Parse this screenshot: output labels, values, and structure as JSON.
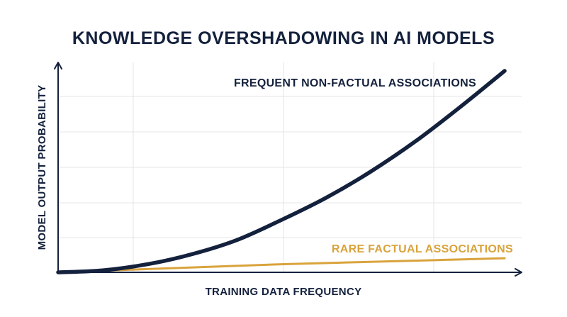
{
  "colors": {
    "ink": "#14213d",
    "accent": "#d9a33c",
    "grid": "#e4e4e4",
    "background": "#ffffff"
  },
  "chart_data": {
    "type": "line",
    "title": "KNOWLEDGE OVERSHADOWING IN AI MODELS",
    "xlabel": "TRAINING DATA FREQUENCY",
    "ylabel": "MODEL OUTPUT PROBABILITY",
    "xlim": [
      0,
      1
    ],
    "ylim": [
      0,
      1
    ],
    "grid": true,
    "legend": "none",
    "series": [
      {
        "name": "FREQUENT NON-FACTUAL ASSOCIATIONS",
        "color": "#14213d",
        "x": [
          0,
          0.1,
          0.2,
          0.3,
          0.4,
          0.5,
          0.6,
          0.7,
          0.8,
          0.9,
          1.0
        ],
        "y": [
          0,
          0.01,
          0.04,
          0.09,
          0.16,
          0.26,
          0.37,
          0.5,
          0.65,
          0.82,
          1.0
        ]
      },
      {
        "name": "RARE FACTUAL ASSOCIATIONS",
        "color": "#d9a33c",
        "x": [
          0,
          0.25,
          0.5,
          0.75,
          1.0
        ],
        "y": [
          0,
          0.02,
          0.04,
          0.055,
          0.07
        ]
      }
    ]
  }
}
